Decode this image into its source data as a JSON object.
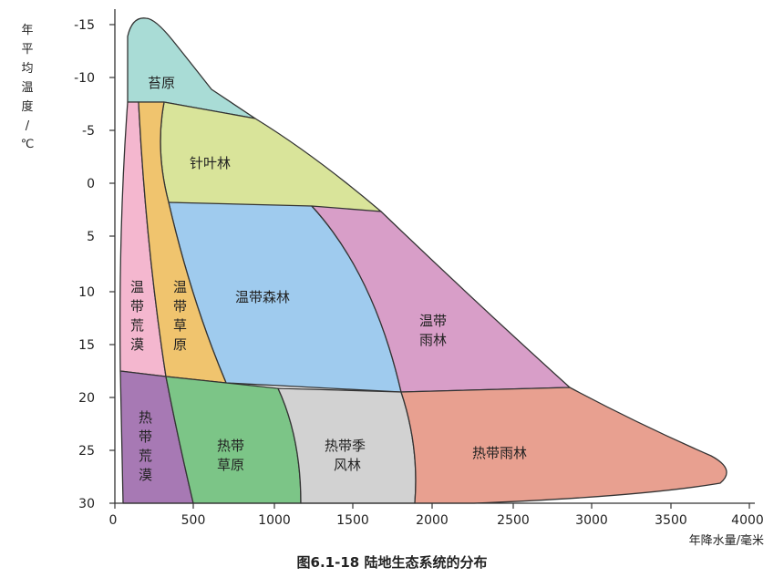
{
  "diagram": {
    "caption": "图6.1-18 陆地生态系统的分布",
    "y_axis": {
      "title_chars": [
        "年",
        "平",
        "均",
        "温",
        "度",
        "/",
        "℃"
      ],
      "ticks": [
        "-15",
        "-10",
        "-5",
        "0",
        "5",
        "10",
        "15",
        "20",
        "25",
        "30"
      ]
    },
    "x_axis": {
      "title": "年降水量/毫米",
      "ticks": [
        "0",
        "500",
        "1000",
        "1500",
        "2000",
        "2500",
        "3000",
        "3500",
        "4000"
      ]
    },
    "regions": {
      "tundra": {
        "lines": [
          "苔原"
        ],
        "color": "#a9dcd6"
      },
      "taiga": {
        "lines": [
          "针叶林"
        ],
        "color": "#d9e49a"
      },
      "temperate_forest": {
        "lines": [
          "温带森林"
        ],
        "color": "#9fcbee"
      },
      "temperate_rainforest": {
        "lines": [
          "温带",
          "雨林"
        ],
        "color": "#d89ec8"
      },
      "temperate_desert": {
        "lines": [
          "温",
          "带",
          "荒",
          "漠"
        ],
        "color": "#f4b7cf"
      },
      "temperate_grassland": {
        "lines": [
          "温",
          "带",
          "草",
          "原"
        ],
        "color": "#f0c46e"
      },
      "tropical_desert": {
        "lines": [
          "热",
          "带",
          "荒",
          "漠"
        ],
        "color": "#a779b4"
      },
      "tropical_grassland": {
        "lines": [
          "热带",
          "草原"
        ],
        "color": "#7cc587"
      },
      "tropical_seasonal_forest": {
        "lines": [
          "热带季",
          "风林"
        ],
        "color": "#d2d2d2"
      },
      "tropical_rainforest": {
        "lines": [
          "热带雨林"
        ],
        "color": "#e8a090"
      }
    }
  }
}
